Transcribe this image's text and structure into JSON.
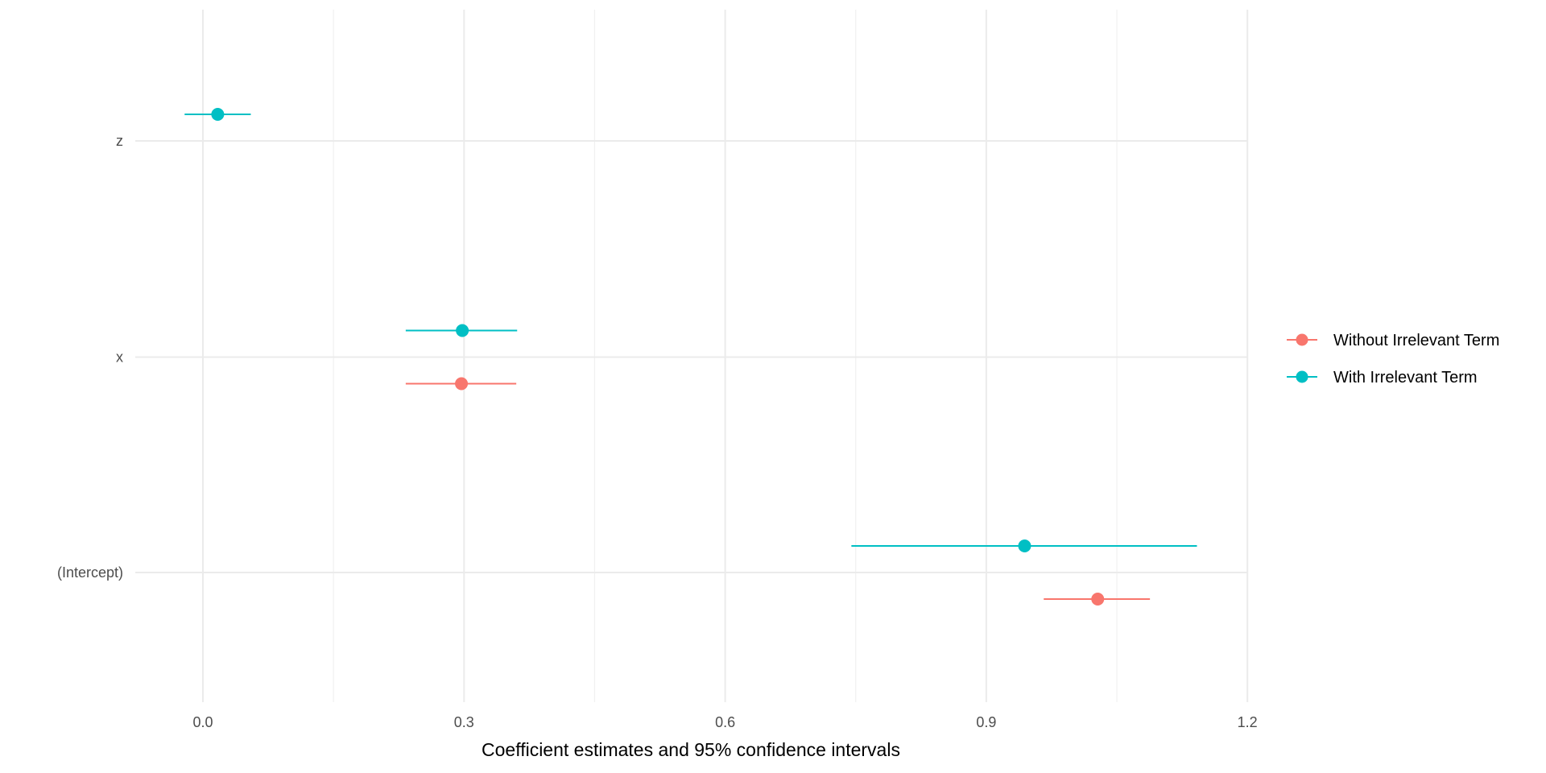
{
  "chart_data": {
    "type": "scatter",
    "subtype": "coefficient-plot",
    "title": "",
    "xlabel": "Coefficient estimates and 95% confidence intervals",
    "ylabel": "",
    "xlim": [
      -0.078,
      1.2
    ],
    "x_ticks": [
      0.0,
      0.3,
      0.6,
      0.9,
      1.2
    ],
    "x_tick_labels": [
      "0.0",
      "0.3",
      "0.6",
      "0.9",
      "1.2"
    ],
    "x_minor_ticks": [
      0.15,
      0.45,
      0.75,
      1.05
    ],
    "categories": [
      "(Intercept)",
      "x",
      "z"
    ],
    "grid": true,
    "legend_position": "right",
    "series": [
      {
        "name": "Without Irrelevant Term",
        "color": "#F8766D",
        "points": [
          {
            "term": "(Intercept)",
            "estimate": 1.028,
            "lower": 0.966,
            "upper": 1.088
          },
          {
            "term": "x",
            "estimate": 0.297,
            "lower": 0.233,
            "upper": 0.36
          }
        ]
      },
      {
        "name": "With Irrelevant Term",
        "color": "#00BFC4",
        "points": [
          {
            "term": "(Intercept)",
            "estimate": 0.944,
            "lower": 0.745,
            "upper": 1.142
          },
          {
            "term": "x",
            "estimate": 0.298,
            "lower": 0.233,
            "upper": 0.361
          },
          {
            "term": "z",
            "estimate": 0.017,
            "lower": -0.021,
            "upper": 0.055
          }
        ]
      }
    ]
  }
}
